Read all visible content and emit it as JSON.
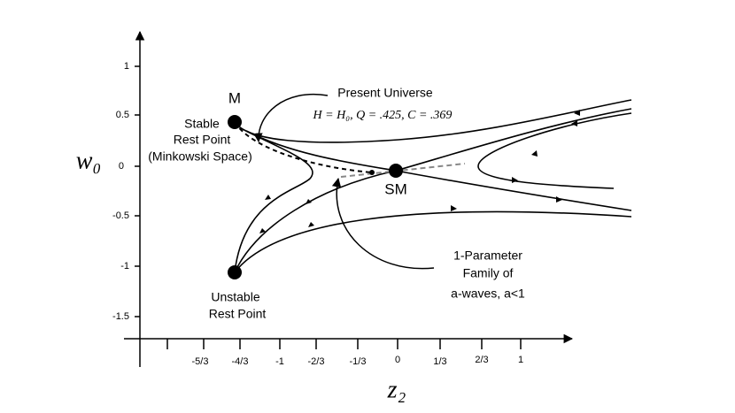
{
  "axes": {
    "x_label": "z₂",
    "y_label": "w₀",
    "x_ticks": [
      "-5/3",
      "-4/3",
      "-1",
      "-2/3",
      "-1/3",
      "0",
      "1/3",
      "2/3",
      "1"
    ],
    "y_ticks": [
      "1",
      "0.5",
      "0",
      "-0.5",
      "-1",
      "-1.5"
    ]
  },
  "labels": {
    "m": "M",
    "sm": "SM",
    "stable": [
      "Stable",
      "Rest Point",
      "(Minkowski Space)"
    ],
    "unstable": [
      "Unstable",
      "Rest Point"
    ],
    "present": "Present Universe",
    "params": "H = H₀,  Q = .425,  C = .369",
    "family": [
      "1-Parameter",
      "Family of",
      "a-waves, a<1"
    ]
  }
}
